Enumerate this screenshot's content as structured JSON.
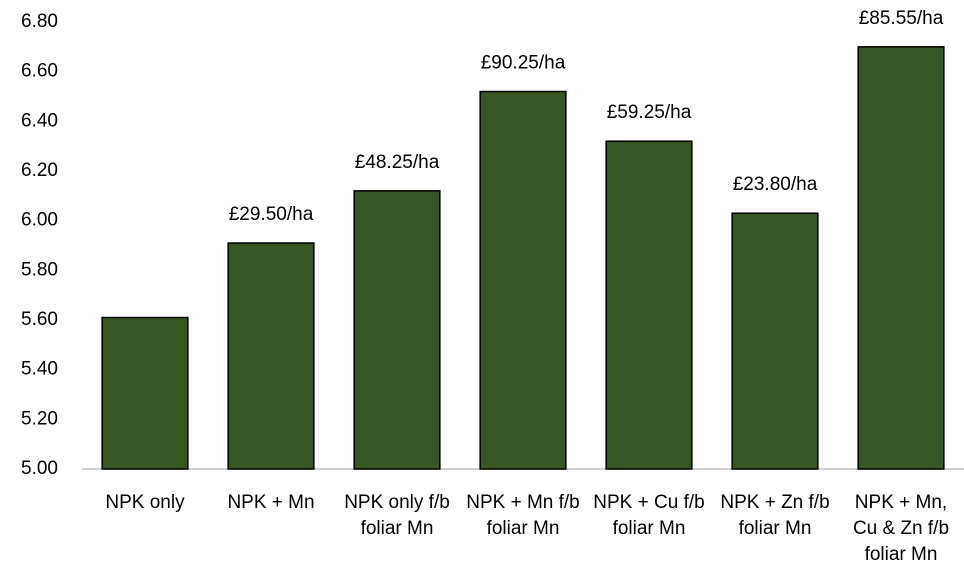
{
  "chart_data": {
    "type": "bar",
    "categories": [
      "NPK only",
      "NPK + Mn",
      "NPK only f/b foliar Mn",
      "NPK + Mn f/b foliar Mn",
      "NPK + Cu f/b foliar Mn",
      "NPK + Zn f/b foliar Mn",
      "NPK + Mn, Cu & Zn f/b foliar Mn"
    ],
    "values": [
      5.61,
      5.91,
      6.12,
      6.52,
      6.32,
      6.03,
      6.7
    ],
    "annotations": [
      null,
      "£29.50/ha",
      "£48.25/ha",
      "£90.25/ha",
      "£59.25/ha",
      "£23.80/ha",
      "£85.55/ha"
    ],
    "color": "#375623",
    "ylim": [
      5.0,
      6.8
    ],
    "yticks": [
      {
        "value": 5.0,
        "label": "5.00"
      },
      {
        "value": 5.2,
        "label": "5.20"
      },
      {
        "value": 5.4,
        "label": "5.40"
      },
      {
        "value": 5.6,
        "label": "5.60"
      },
      {
        "value": 5.8,
        "label": "5.80"
      },
      {
        "value": 6.0,
        "label": "6.00"
      },
      {
        "value": 6.2,
        "label": "6.20"
      },
      {
        "value": 6.4,
        "label": "6.40"
      },
      {
        "value": 6.6,
        "label": "6.60"
      },
      {
        "value": 6.8,
        "label": "6.80"
      }
    ],
    "grid": false
  }
}
